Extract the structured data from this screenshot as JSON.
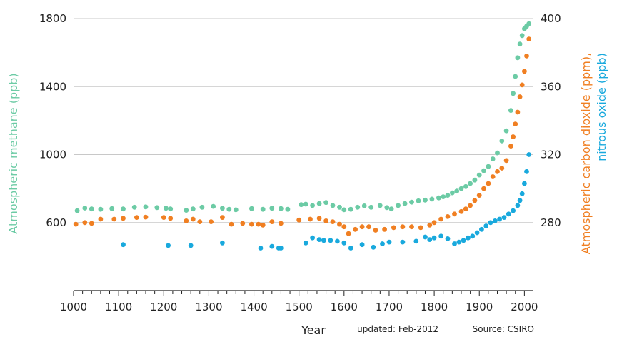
{
  "chart_data": {
    "type": "scatter",
    "xlabel": "Year",
    "xlim": [
      1000,
      2020
    ],
    "xticks": [
      1000,
      1100,
      1200,
      1300,
      1400,
      1500,
      1600,
      1700,
      1800,
      1900,
      2000
    ],
    "y_left": {
      "label": "Atmospheric methane (ppb)",
      "lim": [
        200,
        1800
      ],
      "ticks": [
        600,
        1000,
        1400,
        1800
      ],
      "color": "#6ccba5"
    },
    "y_right": {
      "label_line1": "Atmospheric carbon dioxide (ppm),",
      "label_line2": "nitrous oxide (ppb)",
      "lim": [
        240,
        400
      ],
      "ticks": [
        280,
        320,
        360,
        400
      ],
      "color_line1": "#f07f22",
      "color_line2": "#19a9dd"
    },
    "grid": "horizontal",
    "footer": {
      "updated": "updated: Feb-2012",
      "source": "Source: CSIRO"
    },
    "series": [
      {
        "name": "Atmospheric methane (ppb)",
        "axis": "left",
        "color": "#6ccba5",
        "x": [
          1008,
          1025,
          1040,
          1060,
          1085,
          1110,
          1135,
          1160,
          1185,
          1205,
          1215,
          1250,
          1265,
          1285,
          1310,
          1330,
          1345,
          1360,
          1395,
          1420,
          1440,
          1460,
          1475,
          1505,
          1515,
          1530,
          1545,
          1560,
          1575,
          1590,
          1600,
          1615,
          1630,
          1645,
          1660,
          1680,
          1695,
          1705,
          1720,
          1735,
          1750,
          1765,
          1780,
          1795,
          1810,
          1820,
          1830,
          1840,
          1850,
          1860,
          1870,
          1880,
          1890,
          1900,
          1910,
          1920,
          1930,
          1940,
          1950,
          1960,
          1970,
          1975,
          1980,
          1985,
          1990,
          1995,
          2000,
          2005,
          2010
        ],
        "y": [
          670,
          685,
          680,
          678,
          682,
          680,
          690,
          692,
          688,
          684,
          680,
          672,
          680,
          690,
          695,
          684,
          678,
          675,
          682,
          678,
          684,
          682,
          678,
          705,
          708,
          700,
          712,
          718,
          700,
          690,
          675,
          678,
          690,
          698,
          690,
          700,
          688,
          680,
          700,
          712,
          720,
          728,
          732,
          738,
          745,
          752,
          760,
          775,
          785,
          800,
          812,
          830,
          850,
          880,
          905,
          930,
          975,
          1010,
          1080,
          1140,
          1260,
          1360,
          1460,
          1570,
          1650,
          1700,
          1740,
          1755,
          1770
        ]
      },
      {
        "name": "Atmospheric carbon dioxide (ppm)",
        "axis": "right",
        "color": "#f07f22",
        "x": [
          1005,
          1025,
          1040,
          1060,
          1090,
          1110,
          1140,
          1160,
          1200,
          1215,
          1250,
          1265,
          1280,
          1305,
          1330,
          1350,
          1375,
          1395,
          1410,
          1420,
          1440,
          1460,
          1500,
          1525,
          1545,
          1560,
          1575,
          1590,
          1600,
          1610,
          1625,
          1640,
          1655,
          1670,
          1690,
          1710,
          1730,
          1750,
          1770,
          1790,
          1800,
          1815,
          1830,
          1845,
          1860,
          1870,
          1880,
          1890,
          1900,
          1910,
          1920,
          1930,
          1940,
          1950,
          1960,
          1970,
          1975,
          1980,
          1985,
          1990,
          1995,
          2000,
          2005,
          2010
        ],
        "y": [
          279.0,
          280.0,
          279.5,
          282.0,
          282.0,
          282.5,
          283.0,
          283.2,
          283.0,
          282.5,
          281.0,
          282.0,
          280.5,
          280.5,
          283.0,
          279.0,
          279.5,
          279.0,
          279.0,
          278.5,
          280.5,
          279.5,
          281.5,
          282.0,
          282.5,
          281.0,
          280.5,
          279.0,
          277.5,
          273.5,
          276.0,
          277.5,
          277.5,
          275.5,
          276.0,
          277.0,
          277.5,
          277.5,
          277.0,
          278.5,
          280.0,
          282.0,
          283.5,
          285.0,
          286.5,
          288.0,
          290.0,
          293.0,
          296.0,
          300.0,
          303.0,
          307.0,
          310.0,
          312.0,
          316.5,
          325.0,
          330.5,
          338.0,
          345.0,
          354.0,
          361.0,
          369.0,
          378.0,
          388.0
        ]
      },
      {
        "name": "Nitrous oxide (ppb)",
        "axis": "right",
        "color": "#19a9dd",
        "x": [
          1110,
          1210,
          1260,
          1330,
          1415,
          1440,
          1455,
          1460,
          1515,
          1530,
          1545,
          1555,
          1570,
          1585,
          1600,
          1615,
          1640,
          1665,
          1685,
          1700,
          1730,
          1760,
          1780,
          1790,
          1800,
          1815,
          1830,
          1845,
          1855,
          1865,
          1875,
          1885,
          1895,
          1905,
          1915,
          1925,
          1935,
          1945,
          1955,
          1965,
          1975,
          1985,
          1990,
          1995,
          2000,
          2005,
          2010
        ],
        "y": [
          267.0,
          266.5,
          266.5,
          268.0,
          265.0,
          266.0,
          265.0,
          265.0,
          268.0,
          271.0,
          270.0,
          269.5,
          269.5,
          269.0,
          268.0,
          265.0,
          267.0,
          265.5,
          267.5,
          268.5,
          268.5,
          269.0,
          271.5,
          270.0,
          271.0,
          272.0,
          270.5,
          267.5,
          268.5,
          269.5,
          271.0,
          272.0,
          274.0,
          276.0,
          278.0,
          280.0,
          281.0,
          282.0,
          283.0,
          285.0,
          287.0,
          290.0,
          293.0,
          297.0,
          303.0,
          310.0,
          320.0
        ]
      }
    ]
  }
}
